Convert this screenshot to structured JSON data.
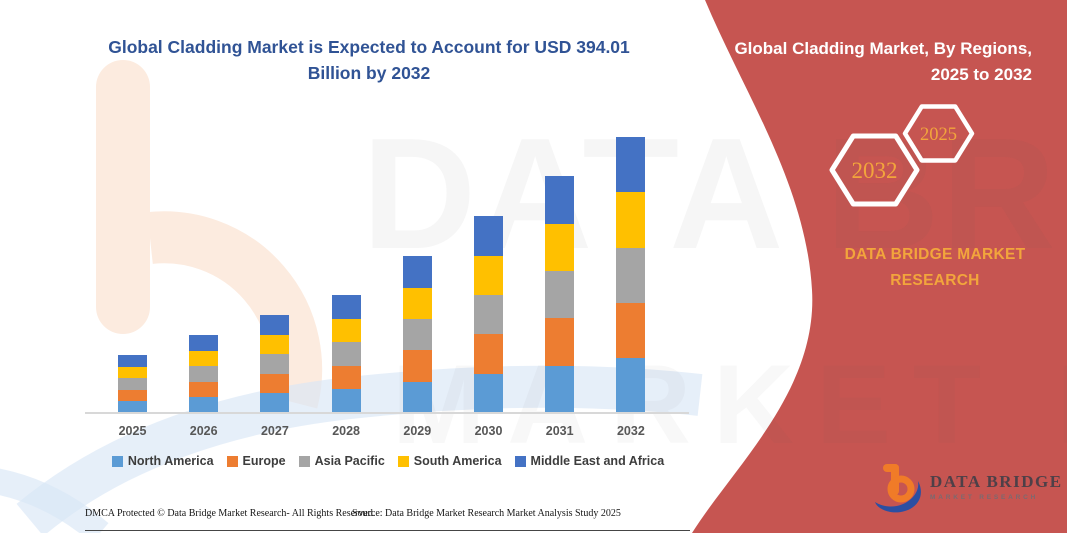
{
  "title": {
    "text": "Global Cladding Market is Expected to Account for USD 394.01 Billion by 2032"
  },
  "right_panel": {
    "heading": "Global Cladding Market, By Regions, 2025 to 2032",
    "hexagons": [
      {
        "label": "2032"
      },
      {
        "label": "2025"
      }
    ],
    "brand_text": "DATA BRIDGE MARKET RESEARCH",
    "logo": {
      "name": "DATA BRIDGE",
      "tagline": "MARKET RESEARCH"
    }
  },
  "watermark": {
    "line1": "DATA BRIDGE",
    "line2": "MARKET RESEARCH"
  },
  "footer": {
    "dmca": "DMCA Protected © Data Bridge Market Research-  All Rights Reserved.",
    "source": "Source: Data Bridge Market Research  Market Analysis Study 2025"
  },
  "colors": {
    "accent_red": "#C65551",
    "title_navy": "#305395",
    "brand_orange": "#F2A53C",
    "axis_gray": "#D8D8D8",
    "logo_orange": "#F07B28",
    "logo_blue": "#2B4FA2"
  },
  "chart_data": {
    "type": "bar",
    "stacked": true,
    "unit": "USD Billion",
    "categories": [
      "2025",
      "2026",
      "2027",
      "2028",
      "2029",
      "2030",
      "2031",
      "2032"
    ],
    "series": [
      {
        "name": "North America",
        "color": "#5B9BD5",
        "values": [
          16.6,
          22.3,
          28.0,
          33.7,
          44.8,
          56.2,
          67.7,
          78.8
        ]
      },
      {
        "name": "Europe",
        "color": "#ED7D31",
        "values": [
          16.6,
          22.3,
          28.0,
          33.7,
          44.8,
          56.2,
          67.7,
          78.8
        ]
      },
      {
        "name": "Asia Pacific",
        "color": "#A5A5A5",
        "values": [
          16.6,
          22.3,
          28.0,
          33.7,
          44.8,
          56.2,
          67.7,
          78.8
        ]
      },
      {
        "name": "South America",
        "color": "#FFC000",
        "values": [
          16.6,
          22.3,
          28.0,
          33.7,
          44.8,
          56.2,
          67.7,
          78.8
        ]
      },
      {
        "name": "Middle East and Africa",
        "color": "#4472C4",
        "values": [
          16.6,
          22.3,
          28.0,
          33.7,
          44.8,
          56.2,
          67.7,
          78.8
        ]
      }
    ],
    "totals_estimated": [
      82.8,
      111.4,
      139.9,
      168.5,
      224.1,
      281.2,
      338.3,
      394.01
    ],
    "title": "Global Cladding Market is Expected to Account for USD 394.01 Billion by 2032",
    "xlabel": "",
    "ylabel": "",
    "ylim": [
      0,
      400
    ],
    "grid": false,
    "legend_position": "bottom"
  }
}
